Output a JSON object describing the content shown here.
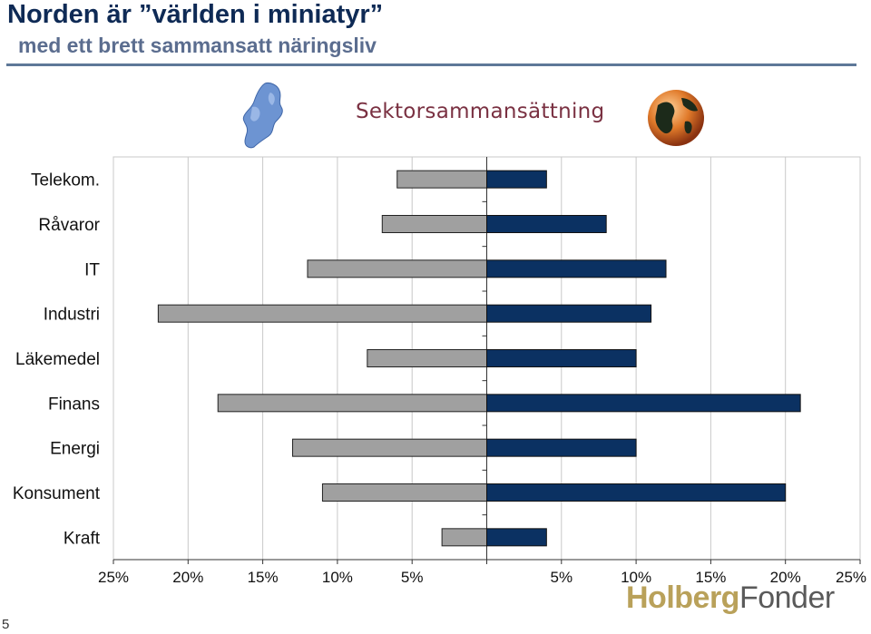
{
  "header": {
    "title": "Norden är ”världen i miniatyr”",
    "subtitle": "med ett brett sammansatt näringsliv"
  },
  "section_title": "Sektorsammansättning",
  "icons": {
    "left": "nordic-map-icon",
    "right": "globe-icon"
  },
  "footer": {
    "page_number": "5",
    "brand_part1": "Holberg",
    "brand_part2": "Fonder"
  },
  "colors": {
    "left_series": "#a0a0a0",
    "right_series": "#0b3162",
    "title": "#0e2a55",
    "section_title": "#7a3142",
    "brand_gold": "#b9a15a"
  },
  "chart_data": {
    "type": "bar",
    "orientation": "horizontal",
    "layout": "butterfly",
    "categories": [
      "Telekom.",
      "Råvaror",
      "IT",
      "Industri",
      "Läkemedel",
      "Finans",
      "Energi",
      "Konsument",
      "Kraft"
    ],
    "series": [
      {
        "side": "left",
        "values": [
          6,
          7,
          12,
          22,
          8,
          18,
          13,
          11,
          3
        ]
      },
      {
        "side": "right",
        "values": [
          4,
          8,
          12,
          11,
          10,
          21,
          10,
          20,
          4
        ]
      }
    ],
    "x_ticks_left": [
      "25%",
      "20%",
      "15%",
      "10%",
      "5%"
    ],
    "x_ticks_right": [
      "5%",
      "10%",
      "15%",
      "20%",
      "25%"
    ],
    "xlim": [
      0,
      25
    ],
    "grid": true
  }
}
